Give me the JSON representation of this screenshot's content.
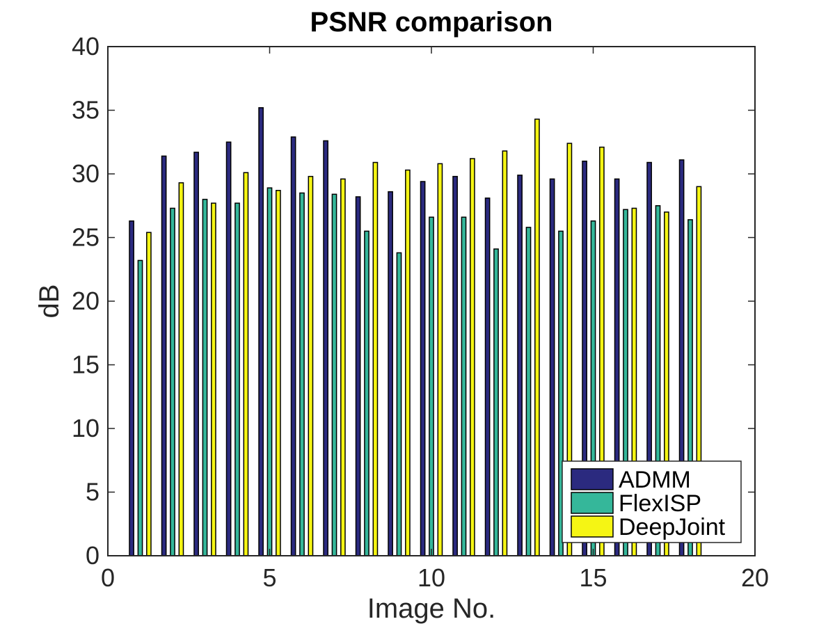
{
  "chart_data": {
    "type": "bar",
    "title": "PSNR comparison",
    "xlabel": "Image No.",
    "ylabel": "dB",
    "xlim": [
      0,
      20
    ],
    "ylim": [
      0,
      40
    ],
    "x_ticks": [
      0,
      5,
      10,
      15,
      20
    ],
    "y_ticks": [
      0,
      5,
      10,
      15,
      20,
      25,
      30,
      35,
      40
    ],
    "grid": false,
    "legend_position": "bottom-right",
    "categories": [
      1,
      2,
      3,
      4,
      5,
      6,
      7,
      8,
      9,
      10,
      11,
      12,
      13,
      14,
      15,
      16,
      17,
      18
    ],
    "series": [
      {
        "name": "ADMM",
        "color": "#2b2a7f",
        "values": [
          26.3,
          31.4,
          31.7,
          32.5,
          35.2,
          32.9,
          32.6,
          28.2,
          28.6,
          29.4,
          29.8,
          28.1,
          29.9,
          29.6,
          31.0,
          29.6,
          30.9,
          31.1
        ]
      },
      {
        "name": "FlexISP",
        "color": "#35b79a",
        "values": [
          23.2,
          27.3,
          28.0,
          27.7,
          28.9,
          28.5,
          28.4,
          25.5,
          23.8,
          26.6,
          26.6,
          24.1,
          25.8,
          25.5,
          26.3,
          27.2,
          27.5,
          26.4
        ]
      },
      {
        "name": "DeepJoint",
        "color": "#f5f514",
        "values": [
          25.4,
          29.3,
          27.7,
          30.1,
          28.7,
          29.8,
          29.6,
          30.9,
          30.3,
          30.8,
          31.2,
          31.8,
          34.3,
          32.4,
          32.1,
          27.3,
          27.0,
          29.0
        ]
      }
    ]
  }
}
